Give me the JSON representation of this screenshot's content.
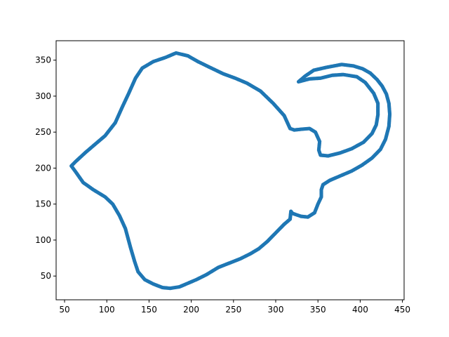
{
  "chart_data": {
    "type": "scatter",
    "title": "",
    "xlabel": "",
    "ylabel": "",
    "xlim": [
      40,
      452
    ],
    "ylim": [
      17,
      377
    ],
    "grid": false,
    "legend": "none",
    "x_ticks": [
      50,
      100,
      150,
      200,
      250,
      300,
      350,
      400,
      450
    ],
    "y_ticks": [
      50,
      100,
      150,
      200,
      250,
      300,
      350
    ],
    "series": [
      {
        "color": "#1f77b4",
        "points": [
          [
            327,
            320
          ],
          [
            335,
            328
          ],
          [
            345,
            336
          ],
          [
            360,
            340
          ],
          [
            378,
            344
          ],
          [
            392,
            342
          ],
          [
            403,
            338
          ],
          [
            412,
            332
          ],
          [
            420,
            323
          ],
          [
            426,
            314
          ],
          [
            431,
            303
          ],
          [
            434,
            290
          ],
          [
            435,
            275
          ],
          [
            434,
            258
          ],
          [
            430,
            240
          ],
          [
            424,
            226
          ],
          [
            414,
            214
          ],
          [
            402,
            204
          ],
          [
            390,
            196
          ],
          [
            376,
            189
          ],
          [
            364,
            183
          ],
          [
            356,
            177
          ],
          [
            354,
            170
          ],
          [
            354,
            160
          ],
          [
            350,
            150
          ],
          [
            346,
            138
          ],
          [
            338,
            132
          ],
          [
            330,
            133
          ],
          [
            320,
            137
          ],
          [
            318,
            140
          ],
          [
            317,
            129
          ],
          [
            310,
            122
          ],
          [
            300,
            110
          ],
          [
            290,
            98
          ],
          [
            280,
            88
          ],
          [
            270,
            81
          ],
          [
            258,
            74
          ],
          [
            245,
            68
          ],
          [
            232,
            62
          ],
          [
            218,
            52
          ],
          [
            206,
            45
          ],
          [
            196,
            40
          ],
          [
            186,
            35
          ],
          [
            175,
            33
          ],
          [
            166,
            34
          ],
          [
            155,
            39
          ],
          [
            145,
            45
          ],
          [
            137,
            56
          ],
          [
            133,
            70
          ],
          [
            128,
            90
          ],
          [
            122,
            116
          ],
          [
            115,
            134
          ],
          [
            107,
            150
          ],
          [
            98,
            160
          ],
          [
            84,
            170
          ],
          [
            72,
            180
          ],
          [
            63,
            195
          ],
          [
            58,
            203
          ],
          [
            63,
            209
          ],
          [
            75,
            222
          ],
          [
            87,
            234
          ],
          [
            98,
            245
          ],
          [
            110,
            263
          ],
          [
            118,
            284
          ],
          [
            126,
            304
          ],
          [
            134,
            325
          ],
          [
            142,
            339
          ],
          [
            155,
            348
          ],
          [
            170,
            354
          ],
          [
            182,
            360
          ],
          [
            196,
            356
          ],
          [
            208,
            348
          ],
          [
            222,
            340
          ],
          [
            238,
            331
          ],
          [
            252,
            325
          ],
          [
            266,
            318
          ],
          [
            282,
            307
          ],
          [
            297,
            290
          ],
          [
            310,
            273
          ],
          [
            317,
            255
          ],
          [
            322,
            253
          ],
          [
            330,
            254
          ],
          [
            340,
            255
          ],
          [
            347,
            250
          ],
          [
            352,
            237
          ],
          [
            351,
            225
          ],
          [
            353,
            218
          ],
          [
            362,
            217
          ],
          [
            376,
            221
          ],
          [
            390,
            227
          ],
          [
            404,
            236
          ],
          [
            414,
            248
          ],
          [
            419,
            260
          ],
          [
            421,
            274
          ],
          [
            421,
            290
          ],
          [
            416,
            304
          ],
          [
            406,
            319
          ],
          [
            396,
            327
          ],
          [
            380,
            330
          ],
          [
            367,
            329
          ],
          [
            353,
            325
          ],
          [
            340,
            324
          ],
          [
            327,
            320
          ]
        ]
      }
    ]
  }
}
